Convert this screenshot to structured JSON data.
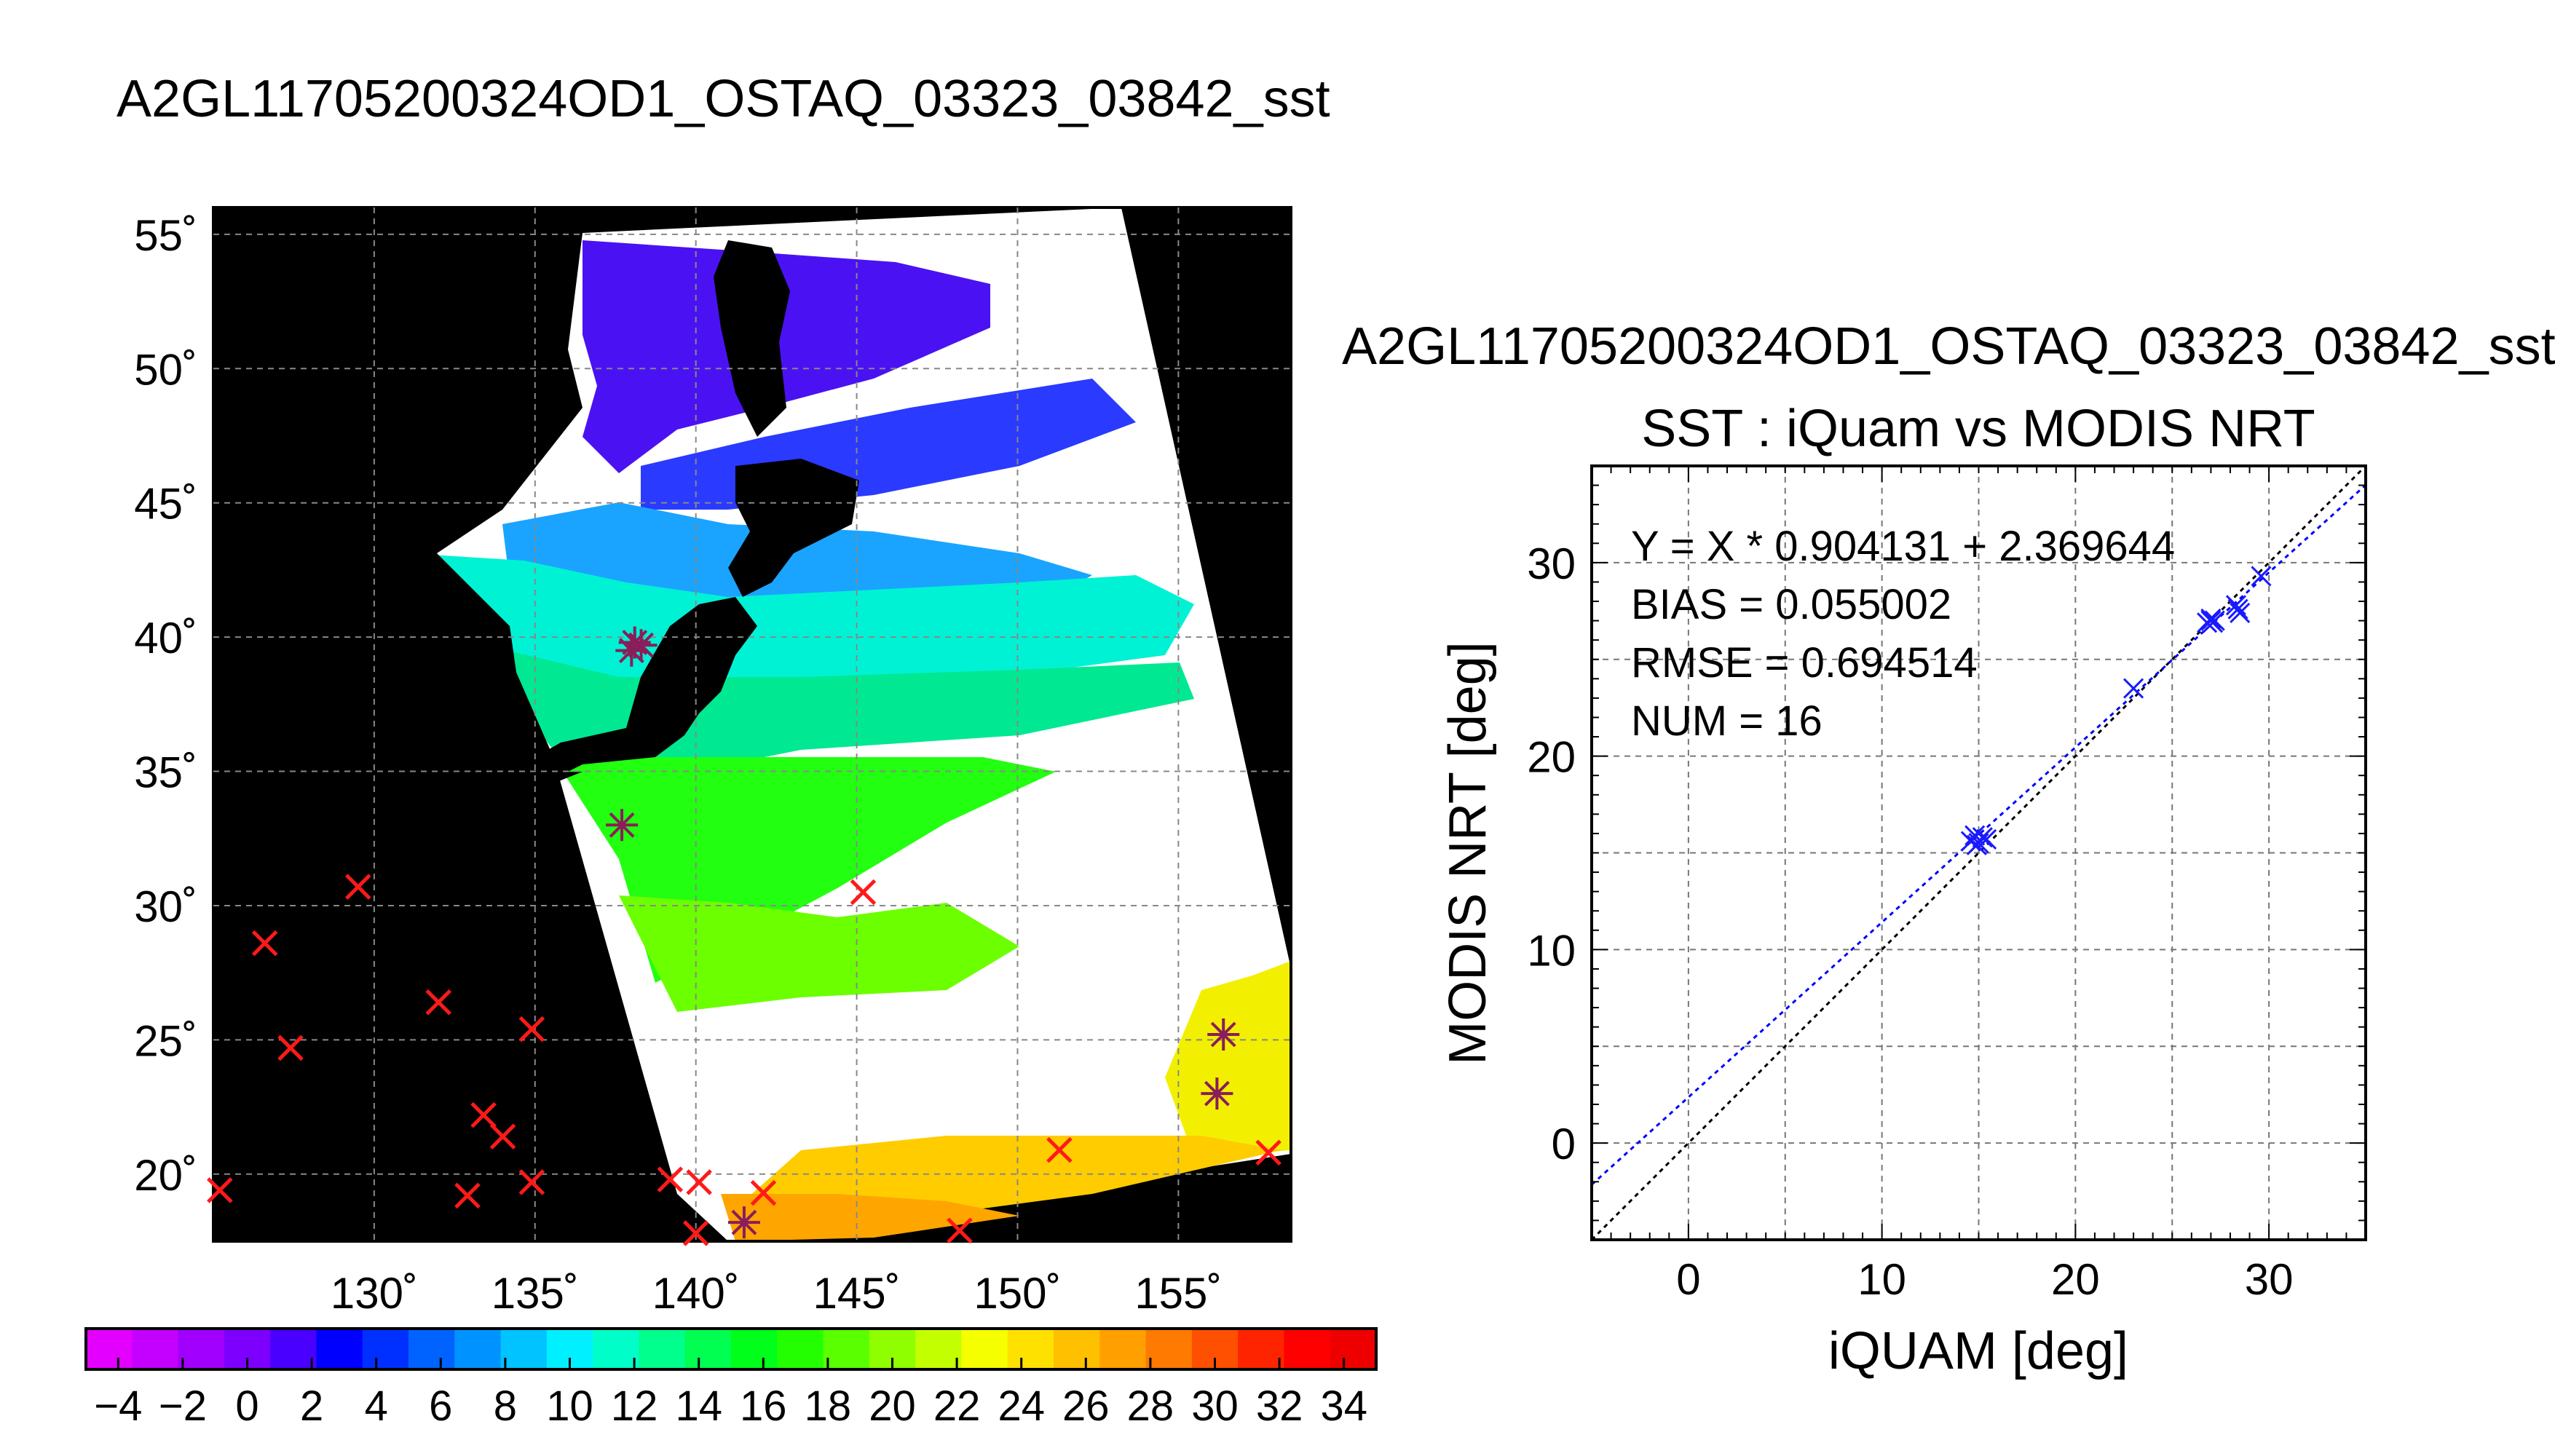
{
  "main_title": "A2GL11705200324OD1_OSTAQ_03323_03842_sst",
  "map": {
    "lat_ticks": [
      {
        "value": 55,
        "label": "55˚"
      },
      {
        "value": 50,
        "label": "50˚"
      },
      {
        "value": 45,
        "label": "45˚"
      },
      {
        "value": 40,
        "label": "40˚"
      },
      {
        "value": 35,
        "label": "35˚"
      },
      {
        "value": 30,
        "label": "30˚"
      },
      {
        "value": 25,
        "label": "25˚"
      },
      {
        "value": 20,
        "label": "20˚"
      }
    ],
    "lon_ticks": [
      {
        "value": 130,
        "label": "130˚"
      },
      {
        "value": 135,
        "label": "135˚"
      },
      {
        "value": 140,
        "label": "140˚"
      },
      {
        "value": 145,
        "label": "145˚"
      },
      {
        "value": 150,
        "label": "150˚"
      },
      {
        "value": 155,
        "label": "155˚"
      }
    ],
    "lon_range": [
      125,
      158.5
    ],
    "lat_range": [
      17.5,
      56
    ],
    "grid": true,
    "colors": {
      "land_and_no_data": "#000000",
      "cloud": "#ffffff",
      "marker_outside": "#ff1a1a",
      "marker_matched": "#8a1d5a"
    },
    "matched_points": [
      {
        "lon": 138.1,
        "lat": 39.8
      },
      {
        "lon": 138.0,
        "lat": 39.5
      },
      {
        "lon": 138.3,
        "lat": 39.7
      },
      {
        "lon": 137.7,
        "lat": 33.0
      },
      {
        "lon": 156.4,
        "lat": 25.2
      },
      {
        "lon": 156.2,
        "lat": 23.0
      },
      {
        "lon": 141.5,
        "lat": 18.2
      }
    ],
    "unmatched_points": [
      {
        "lon": 126.6,
        "lat": 28.6
      },
      {
        "lon": 129.5,
        "lat": 30.7
      },
      {
        "lon": 127.4,
        "lat": 24.7
      },
      {
        "lon": 132.0,
        "lat": 26.4
      },
      {
        "lon": 134.9,
        "lat": 25.4
      },
      {
        "lon": 133.4,
        "lat": 22.2
      },
      {
        "lon": 134.0,
        "lat": 21.4
      },
      {
        "lon": 132.9,
        "lat": 19.2
      },
      {
        "lon": 134.9,
        "lat": 19.7
      },
      {
        "lon": 139.2,
        "lat": 19.8
      },
      {
        "lon": 140.1,
        "lat": 19.7
      },
      {
        "lon": 142.1,
        "lat": 19.3
      },
      {
        "lon": 145.2,
        "lat": 30.5
      },
      {
        "lon": 151.3,
        "lat": 20.9
      },
      {
        "lon": 148.2,
        "lat": 17.9
      },
      {
        "lon": 157.8,
        "lat": 20.8
      },
      {
        "lon": 125.2,
        "lat": 19.4
      },
      {
        "lon": 140.0,
        "lat": 17.8
      }
    ]
  },
  "colorbar": {
    "labels": [
      "−4",
      "−2",
      "0",
      "2",
      "4",
      "6",
      "8",
      "10",
      "12",
      "14",
      "16",
      "18",
      "20",
      "22",
      "24",
      "26",
      "28",
      "30",
      "32",
      "34"
    ],
    "range": [
      -5,
      35
    ],
    "colors": [
      "#e400ff",
      "#c400ff",
      "#a100ff",
      "#7d00ff",
      "#4a00ff",
      "#0000ff",
      "#0030ff",
      "#0063ff",
      "#0093ff",
      "#00c3ff",
      "#00f0ff",
      "#00ffc8",
      "#00ff8c",
      "#00ff50",
      "#00ff1a",
      "#23ff00",
      "#5aff00",
      "#8fff00",
      "#c4ff00",
      "#f6ff00",
      "#ffe100",
      "#ffc000",
      "#ffa000",
      "#ff7a00",
      "#ff4f00",
      "#ff2400",
      "#ff0000",
      "#ee0000"
    ]
  },
  "scatter": {
    "title": "A2GL11705200324OD1_OSTAQ_03323_03842_sst",
    "subtitle": "SST : iQuam vs MODIS NRT",
    "xlabel": "iQUAM [deg]",
    "ylabel": "MODIS NRT [deg]",
    "stats": [
      "Y = X * 0.904131 + 2.369644",
      "BIAS = 0.055002",
      "RMSE = 0.694514",
      "NUM = 16"
    ],
    "x_ticks": [
      "0",
      "10",
      "20",
      "30"
    ],
    "y_ticks": [
      "0",
      "10",
      "20",
      "30"
    ]
  },
  "chart_data": {
    "type": "scatter",
    "title": "SST : iQuam vs MODIS NRT",
    "xlabel": "iQUAM [deg]",
    "ylabel": "MODIS NRT [deg]",
    "xlim": [
      -5,
      35
    ],
    "ylim": [
      -5,
      35
    ],
    "grid": true,
    "points": [
      {
        "x": 14.6,
        "y": 15.6
      },
      {
        "x": 14.8,
        "y": 15.9
      },
      {
        "x": 15.0,
        "y": 15.5
      },
      {
        "x": 15.2,
        "y": 15.8
      },
      {
        "x": 15.4,
        "y": 15.7
      },
      {
        "x": 23.0,
        "y": 23.5
      },
      {
        "x": 26.8,
        "y": 26.9
      },
      {
        "x": 27.0,
        "y": 27.1
      },
      {
        "x": 27.1,
        "y": 26.9
      },
      {
        "x": 27.2,
        "y": 27.0
      },
      {
        "x": 28.3,
        "y": 27.8
      },
      {
        "x": 28.5,
        "y": 27.4
      },
      {
        "x": 29.6,
        "y": 29.3
      },
      {
        "x": 14.9,
        "y": 15.4
      },
      {
        "x": 27.0,
        "y": 27.0
      },
      {
        "x": 28.4,
        "y": 27.6
      }
    ],
    "fit": {
      "slope": 0.904131,
      "intercept": 2.369644,
      "color": "#0000ff"
    },
    "identity_line": {
      "color": "#000000"
    }
  }
}
